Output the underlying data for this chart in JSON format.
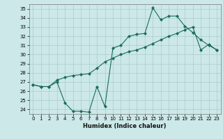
{
  "title": "",
  "xlabel": "Humidex (Indice chaleur)",
  "xlim": [
    -0.5,
    23.5
  ],
  "ylim": [
    23.5,
    35.5
  ],
  "xticks": [
    0,
    1,
    2,
    3,
    4,
    5,
    6,
    7,
    8,
    9,
    10,
    11,
    12,
    13,
    14,
    15,
    16,
    17,
    18,
    19,
    20,
    21,
    22,
    23
  ],
  "yticks": [
    24,
    25,
    26,
    27,
    28,
    29,
    30,
    31,
    32,
    33,
    34,
    35
  ],
  "bg_color": "#cce8e8",
  "grid_color": "#aacccc",
  "line_color": "#1a6b5a",
  "series1_x": [
    0,
    1,
    2,
    3,
    4,
    5,
    6,
    7,
    8,
    9,
    10,
    11,
    12,
    13,
    14,
    15,
    16,
    17,
    18,
    19,
    20,
    21,
    22,
    23
  ],
  "series1_y": [
    26.7,
    26.5,
    26.5,
    27.0,
    24.7,
    23.8,
    23.8,
    23.7,
    26.5,
    24.3,
    30.7,
    31.0,
    32.0,
    32.2,
    32.3,
    35.1,
    33.8,
    34.2,
    34.2,
    33.1,
    32.4,
    31.6,
    31.0,
    30.5
  ],
  "series2_x": [
    0,
    1,
    2,
    3,
    4,
    5,
    6,
    7,
    8,
    9,
    10,
    11,
    12,
    13,
    14,
    15,
    16,
    17,
    18,
    19,
    20,
    21,
    22,
    23
  ],
  "series2_y": [
    26.7,
    26.5,
    26.5,
    27.2,
    27.5,
    27.7,
    27.8,
    27.9,
    28.5,
    29.2,
    29.6,
    30.0,
    30.3,
    30.5,
    30.8,
    31.2,
    31.6,
    32.0,
    32.3,
    32.7,
    33.0,
    30.5,
    31.1,
    30.5
  ],
  "xlabel_fontsize": 6,
  "tick_fontsize": 5
}
